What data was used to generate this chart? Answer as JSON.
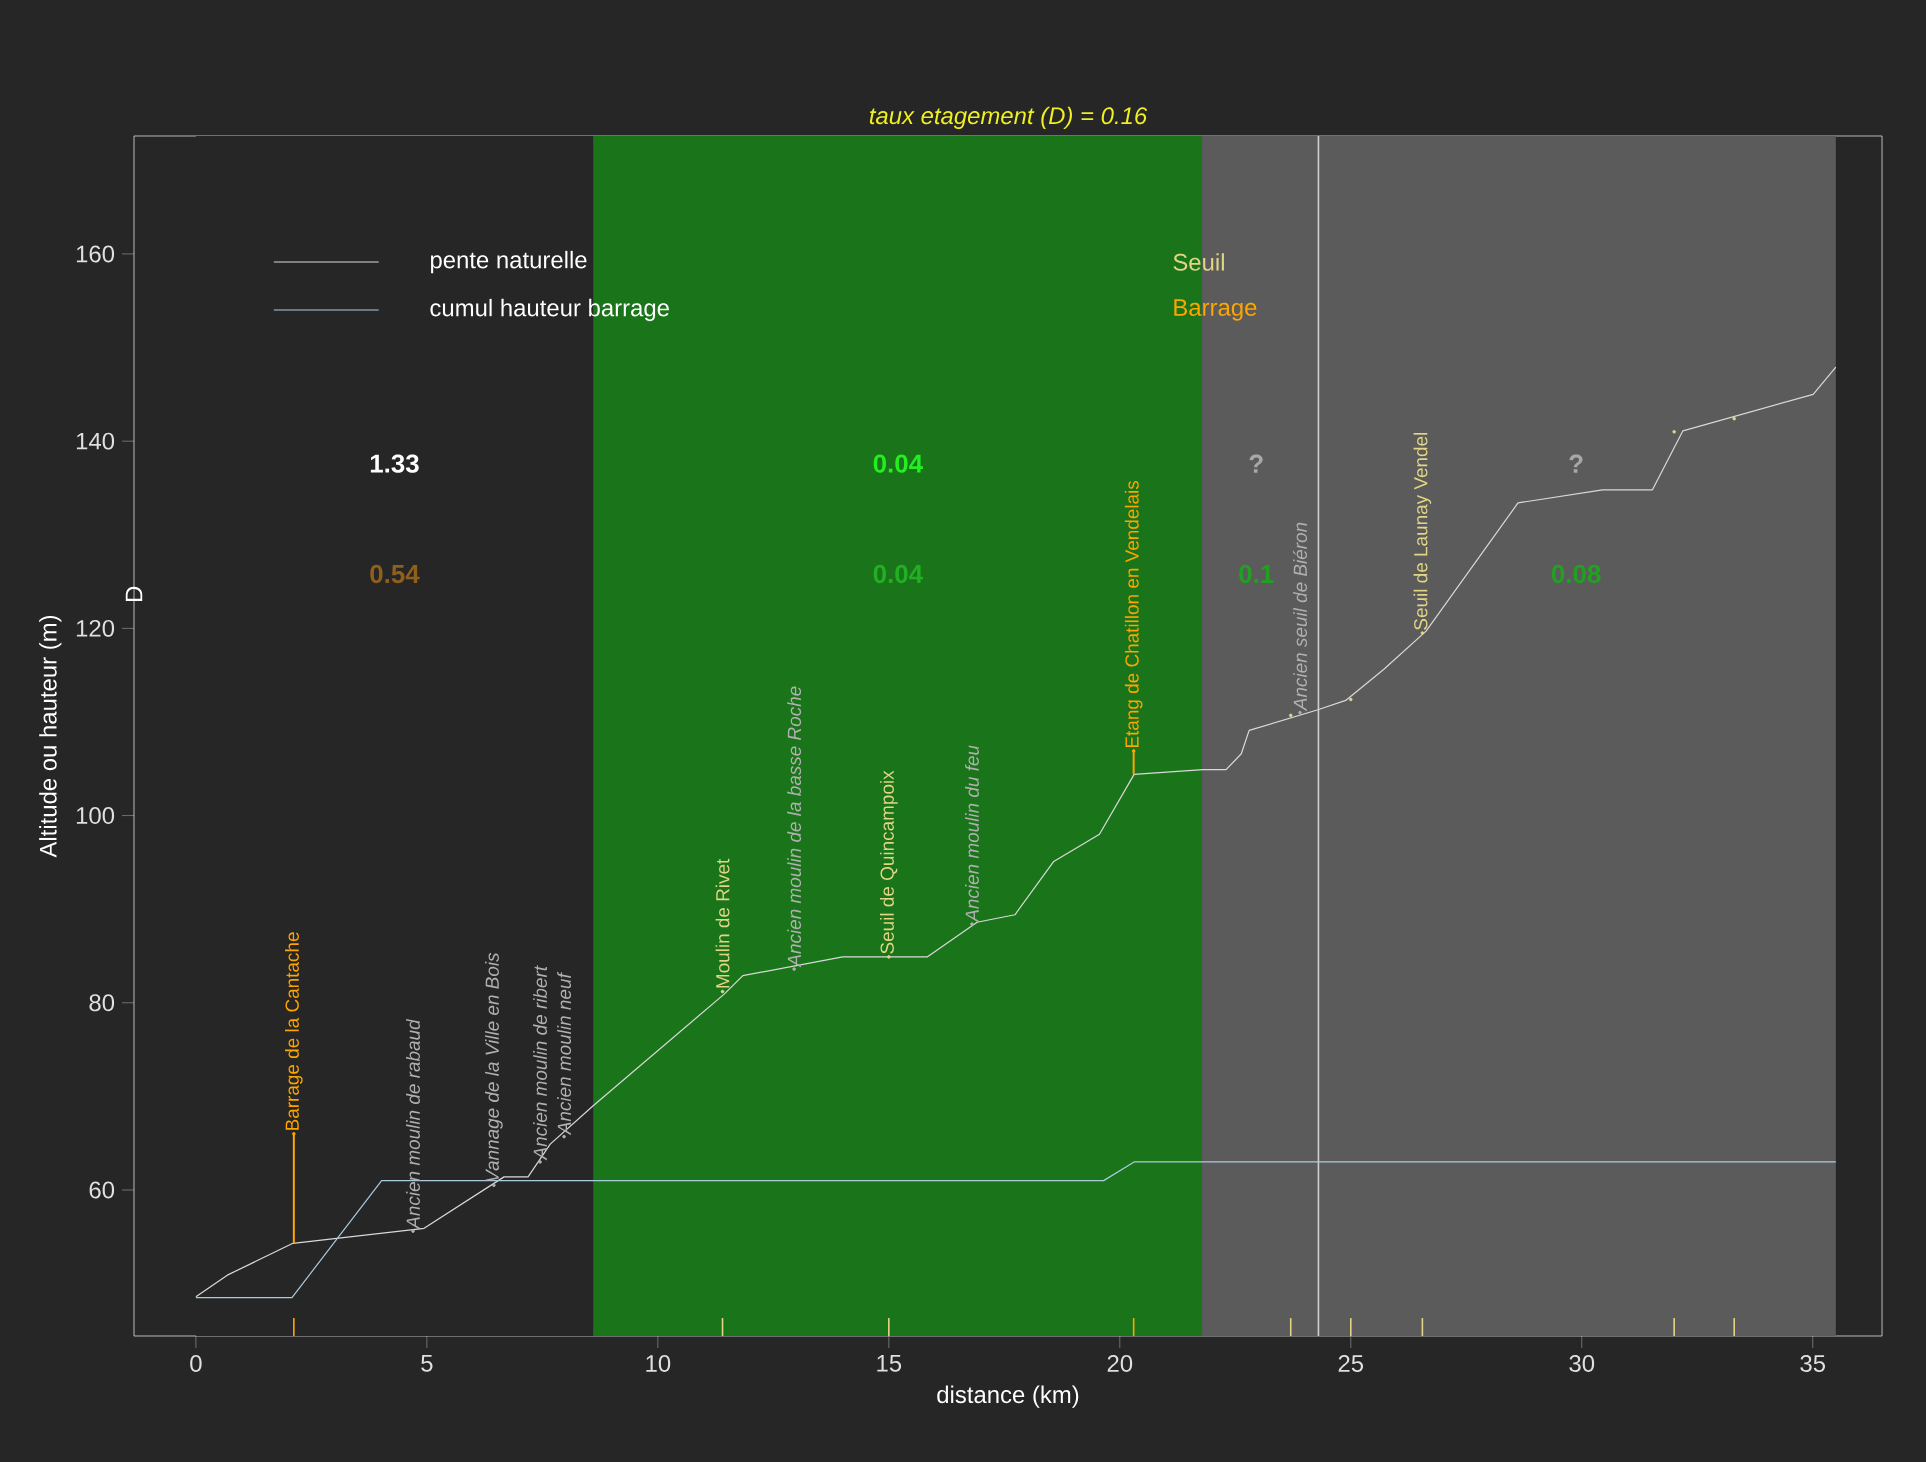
{
  "chart_data": {
    "type": "line",
    "title": "taux etagement (D) = 0.16",
    "xlabel": "distance (km)",
    "ylabel": "Altitude ou hauteur (m)",
    "xlim": [
      -1.34,
      36.5
    ],
    "ylim": [
      44.4,
      172.6
    ],
    "xticks": [
      0,
      5,
      10,
      15,
      20,
      25,
      30,
      35
    ],
    "yticks": [
      60,
      80,
      100,
      120,
      140,
      160
    ],
    "legend": "top left",
    "series": [
      {
        "name": "pente naturelle",
        "color": "#d9d9d9",
        "x": [
          0,
          0.68,
          2.1,
          4.94,
          6.67,
          7.19,
          7.67,
          8.6,
          11.43,
          11.84,
          14.0,
          15.83,
          16.91,
          17.73,
          18.57,
          19.56,
          20.31,
          21.8,
          22.3,
          22.63,
          22.8,
          24.29,
          24.89,
          25.71,
          26.63,
          28.62,
          30.45,
          31.53,
          32.19,
          35.01,
          35.5
        ],
        "values": [
          48.6,
          50.9,
          54.3,
          55.9,
          61.4,
          61.4,
          64.9,
          69.0,
          80.9,
          82.9,
          84.9,
          84.9,
          88.6,
          89.4,
          95.1,
          98.0,
          104.4,
          104.9,
          104.9,
          106.6,
          109.1,
          111.3,
          112.3,
          115.6,
          119.7,
          133.4,
          134.8,
          134.8,
          141.1,
          145.0,
          147.9
        ]
      },
      {
        "name": "cumul hauteur barrage",
        "color": "#a9cbdc",
        "x": [
          0,
          2.08,
          4.02,
          19.65,
          20.31,
          35.5
        ],
        "values": [
          48.5,
          48.5,
          61.0,
          61.0,
          63.0,
          63.0
        ]
      },
      {
        "name": "Seuil",
        "type": "scatter",
        "color": "#e3d586",
        "x": [
          11.4,
          15.0,
          23.7,
          25.0,
          26.55,
          32.0,
          33.3
        ],
        "values": [
          81.2,
          84.9,
          110.7,
          112.4,
          119.5,
          141.0,
          142.4
        ],
        "value_labels": [
          "Moulin de Rivet",
          "Seuil de Quincampoix",
          null,
          null,
          "Seuil de Launay Vendel",
          null,
          null
        ]
      },
      {
        "name": "Barrage",
        "type": "scatter",
        "color": "#ffa500",
        "x": [
          2.12,
          20.3
        ],
        "values": [
          66.0,
          106.9
        ],
        "errors": [
          [
            54.3,
            66.0
          ],
          [
            104.4,
            106.9
          ]
        ],
        "value_labels": [
          "Barrage de la Cantache",
          "Etang de Chatillon en Vendelais"
        ]
      },
      {
        "type": "scatter",
        "color": "#b0b0b0",
        "x": [
          4.7,
          6.45,
          7.45,
          7.97,
          12.95,
          16.8,
          23.9
        ],
        "values": [
          55.6,
          60.5,
          63.0,
          65.7,
          83.6,
          88.4,
          111.0
        ],
        "value_labels": [
          "Ancien moulin de rabaud",
          "Vannage de la Ville en Bois",
          "Ancien moulin de ribert",
          "Ancien moulin neuf",
          "Ancien moulin de la basse Roche",
          "Ancien moulin du feu",
          "Ancien seuil de Biéron"
        ]
      }
    ],
    "bands": [
      {
        "axis": "x",
        "from": 0,
        "to": 8.6,
        "color": "#262626"
      },
      {
        "axis": "x",
        "from": 8.6,
        "to": 21.78,
        "color": "#1a751a"
      },
      {
        "axis": "x",
        "from": 21.78,
        "to": 35.5,
        "color": "#5b5b5b"
      }
    ],
    "ref_lines": [
      {
        "axis": "x",
        "value": 24.3,
        "color": "#d0d0d0"
      }
    ],
    "annotations": [
      "1.33",
      "0.54",
      "0.04",
      "0.04",
      "?",
      "0.1",
      "?",
      "0.08",
      "D"
    ]
  }
}
